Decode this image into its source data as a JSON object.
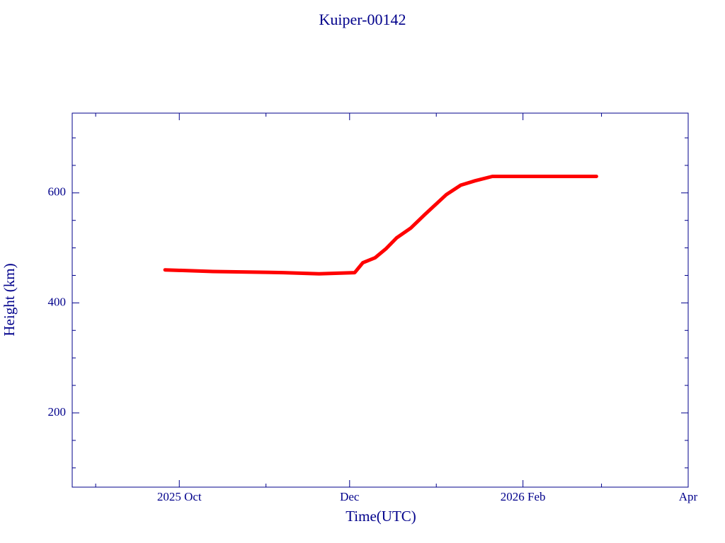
{
  "chart_data": {
    "type": "line",
    "title": "Kuiper-00142",
    "x_label": "Time(UTC)",
    "y_label": "Height (km)",
    "x": [
      2025.734,
      2025.781,
      2025.85,
      2025.885,
      2025.92,
      2025.928,
      2025.94,
      2025.951,
      2025.961,
      2025.975,
      2025.989,
      2026.01,
      2026.024,
      2026.038,
      2026.055,
      2026.093,
      2026.157
    ],
    "series": [
      {
        "color": "#ff0000",
        "values": [
          460,
          457,
          455,
          453,
          455,
          473,
          482,
          499,
          518,
          536,
          561,
          597,
          614,
          622,
          630,
          630,
          630
        ]
      }
    ],
    "xlim": [
      2025.643,
      2026.247
    ],
    "xticks": [
      {
        "value": 2025.748,
        "label": "2025 Oct"
      },
      {
        "value": 2025.915,
        "label": "Dec"
      },
      {
        "value": 2026.085,
        "label": "2026 Feb"
      },
      {
        "value": 2026.247,
        "label": "Apr"
      }
    ],
    "xminorticks": [
      2025.666,
      2025.833,
      2026.0,
      2026.162
    ],
    "ylim": [
      65,
      745
    ],
    "yticks": [
      200,
      400,
      600
    ],
    "yminorticks": [
      100,
      150,
      250,
      300,
      350,
      450,
      500,
      550,
      650,
      700
    ],
    "axis_color": "#00008b"
  }
}
